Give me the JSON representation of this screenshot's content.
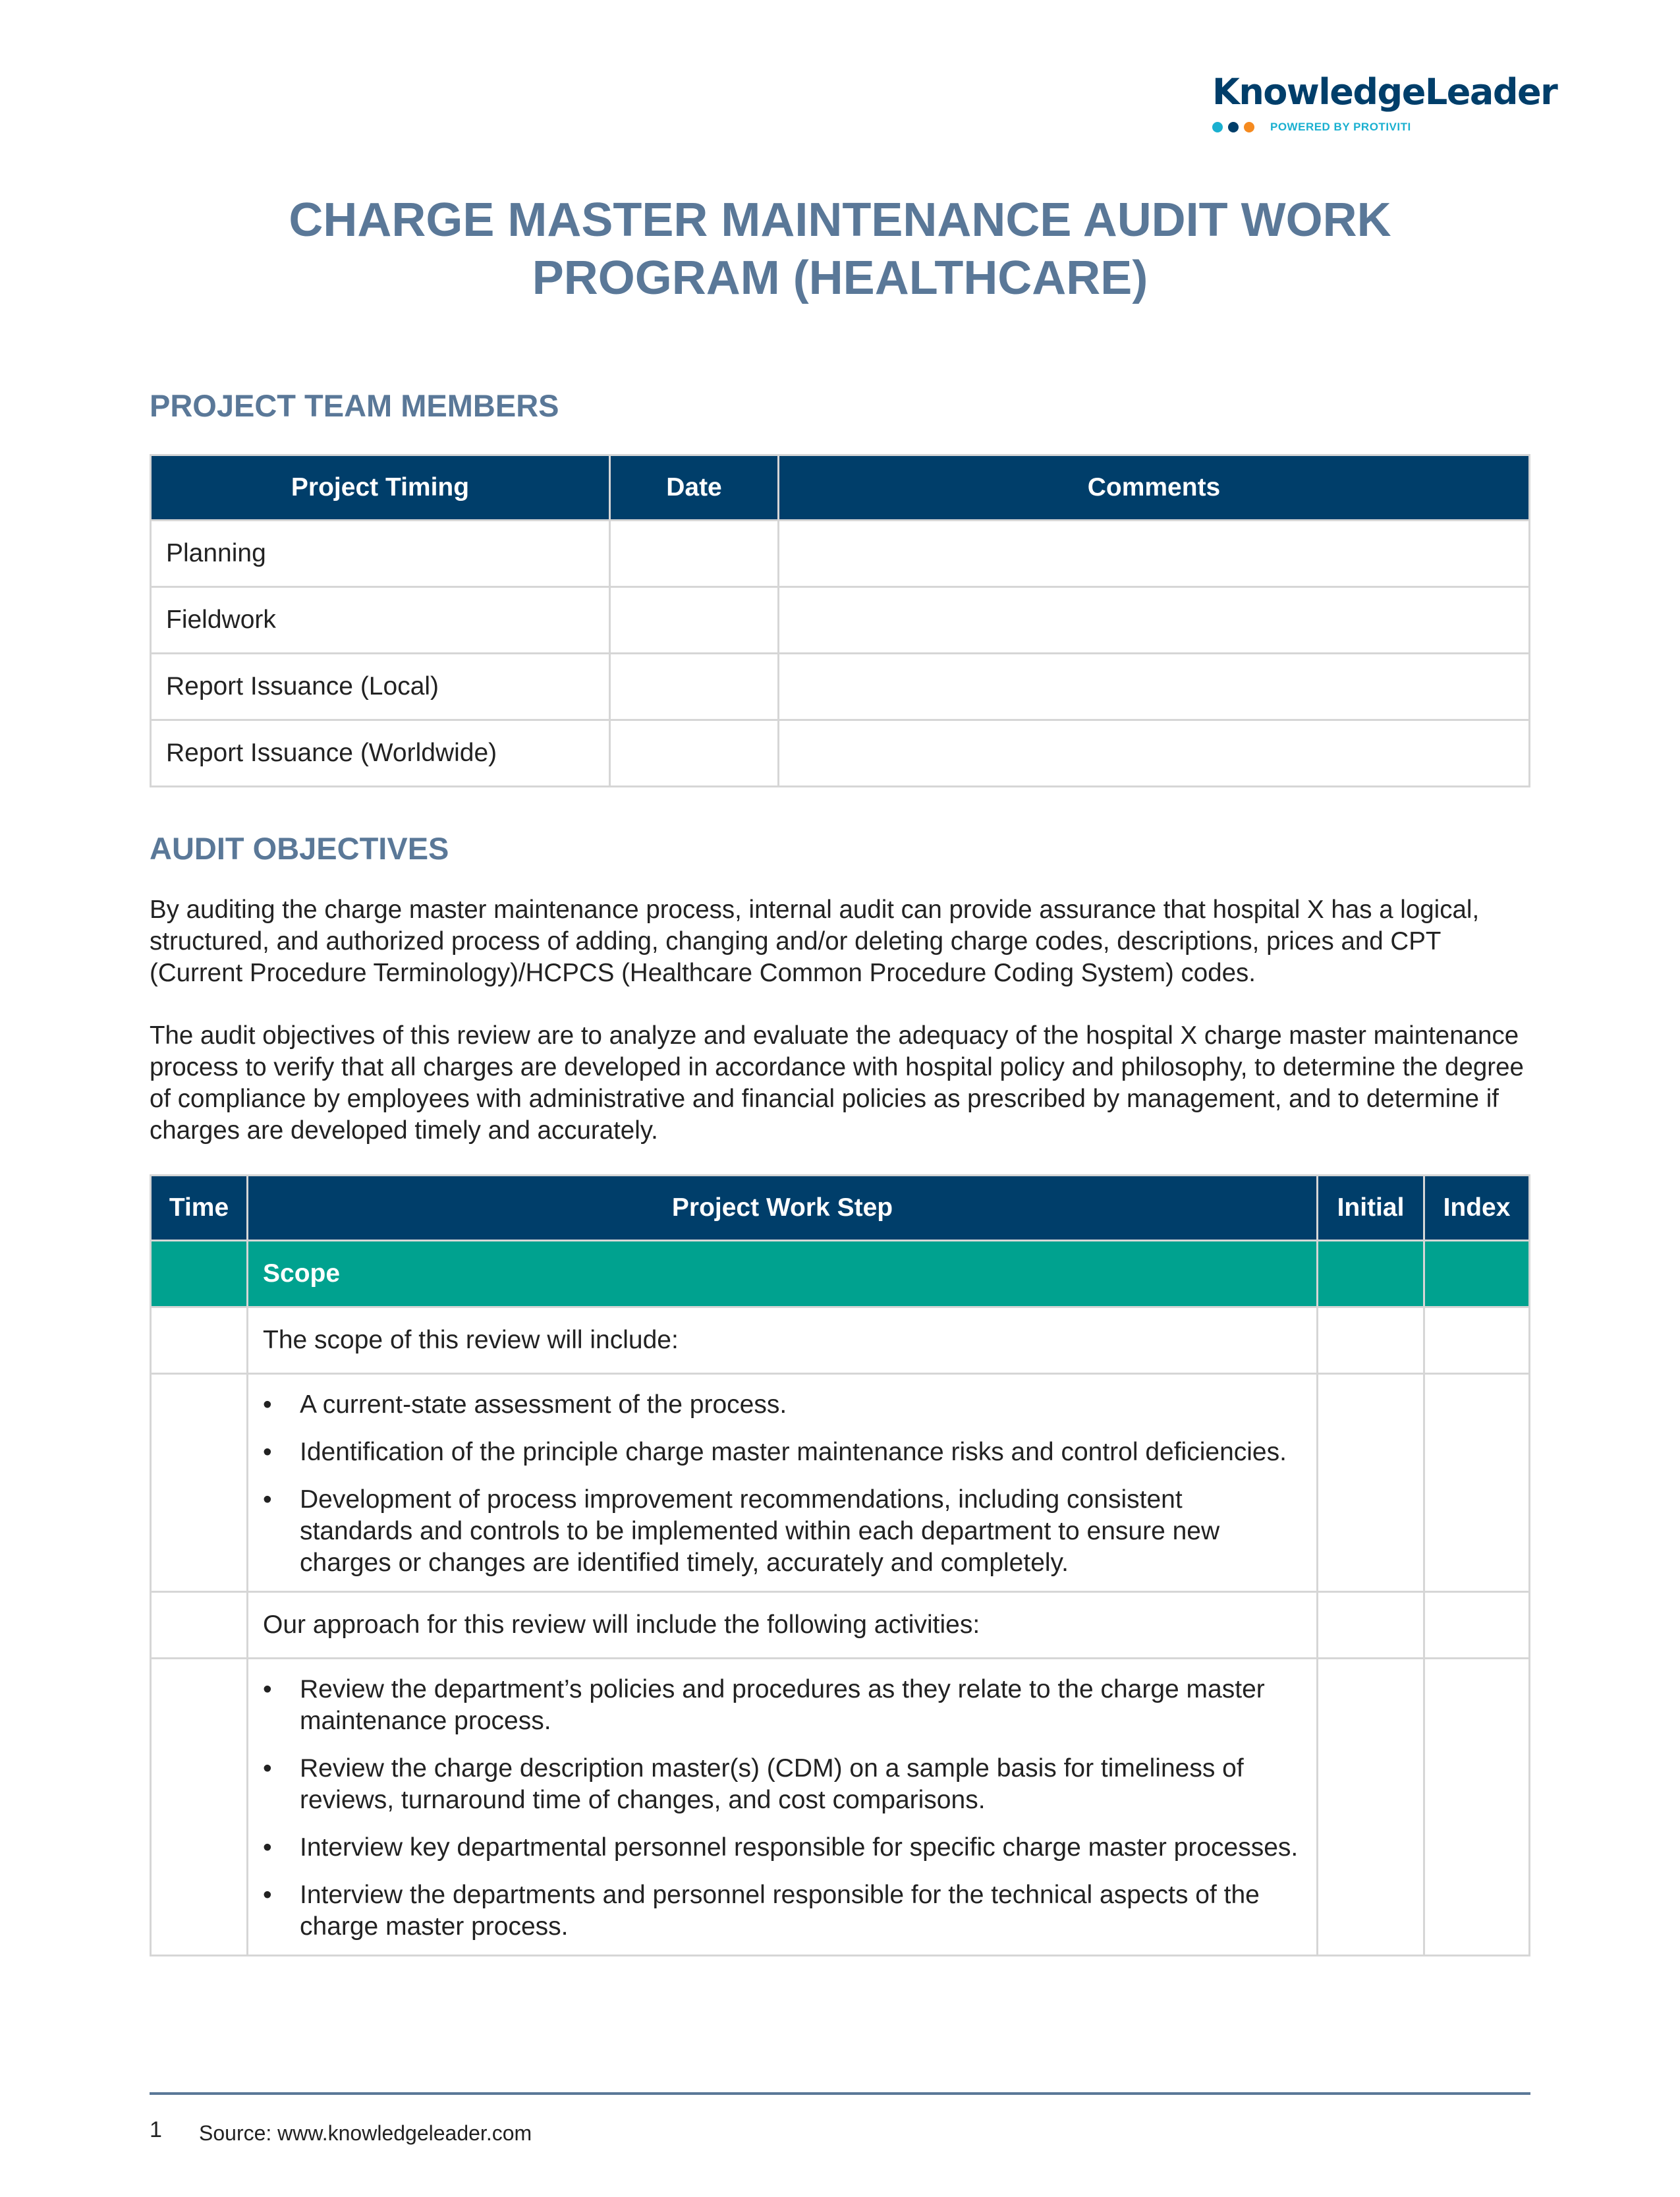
{
  "logo": {
    "text": "KnowledgeLeader",
    "tagline": "POWERED BY PROTIVITI",
    "dot_colors": [
      "#1ab0d0",
      "#003e6a",
      "#f58a1f"
    ]
  },
  "title": {
    "line1": "CHARGE MASTER MAINTENANCE AUDIT WORK",
    "line2": "PROGRAM (HEALTHCARE)"
  },
  "team": {
    "heading": "PROJECT TEAM MEMBERS",
    "columns": [
      "Project Timing",
      "Date",
      "Comments"
    ],
    "rows": [
      "Planning",
      "Fieldwork",
      "Report Issuance (Local)",
      "Report Issuance (Worldwide)"
    ]
  },
  "objectives": {
    "heading": "AUDIT OBJECTIVES",
    "p1": "By auditing the charge master maintenance process, internal audit can provide assurance that hospital X has a logical, structured, and authorized process of adding, changing and/or deleting charge codes, descriptions, prices and CPT (Current Procedure Terminology)/HCPCS (Healthcare Common Procedure Coding System) codes.",
    "p2": "The audit objectives of this review are to analyze and evaluate the adequacy of the hospital X charge master maintenance process to verify that all charges are developed in accordance with hospital policy and philosophy, to determine the degree of compliance by employees with administrative and financial policies as prescribed by management, and to determine if charges are developed timely and accurately."
  },
  "work": {
    "columns": [
      "Time",
      "Project Work Step",
      "Initial",
      "Index"
    ],
    "section": "Scope",
    "scope_intro": "The scope of this review will include:",
    "scope_items": [
      "A current-state assessment of the process.",
      "Identification of the principle charge master maintenance risks and control deficiencies.",
      "Development of process improvement recommendations, including consistent standards and controls to be implemented within each department to ensure new charges or changes are identified timely, accurately and completely."
    ],
    "approach_intro": "Our approach for this review will include the following activities:",
    "approach_items": [
      "Review the department’s policies and procedures as they relate to the charge master maintenance process.",
      "Review the charge description master(s) (CDM) on a sample basis for timeliness of reviews, turnaround time of changes, and cost comparisons.",
      "Interview key departmental personnel responsible for specific charge master processes.",
      "Interview the departments and personnel responsible for the technical aspects of the charge master process."
    ]
  },
  "footer": {
    "page": "1",
    "source": "Source: www.knowledgeleader.com"
  },
  "colors": {
    "navy": "#003e6a",
    "teal": "#00a28f",
    "heading": "#5a7898"
  }
}
